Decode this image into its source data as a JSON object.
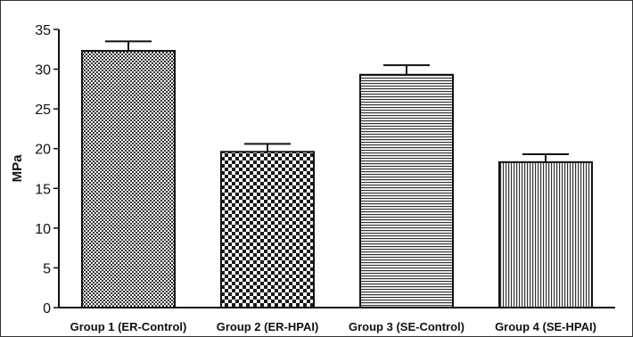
{
  "chart_data": {
    "type": "bar",
    "title": "",
    "xlabel": "",
    "ylabel": "MPa",
    "ylim": [
      0,
      35
    ],
    "yticks": [
      0,
      5,
      10,
      15,
      20,
      25,
      30,
      35
    ],
    "grid": false,
    "legend": "none",
    "categories": [
      "Group 1 (ER-Control)",
      "Group 2 (ER-HPAI)",
      "Group 3 (SE-Control)",
      "Group 4 (SE-HPAI)"
    ],
    "values": [
      32.3,
      19.6,
      29.3,
      18.3
    ],
    "errors": [
      1.2,
      1.0,
      1.2,
      1.0
    ],
    "patterns": [
      "fine-checker",
      "coarse-checker",
      "horizontal-lines",
      "vertical-lines"
    ],
    "colors": {
      "bar_edge": "#111111",
      "pattern_ink": "#222222",
      "background": "#ffffff"
    }
  }
}
